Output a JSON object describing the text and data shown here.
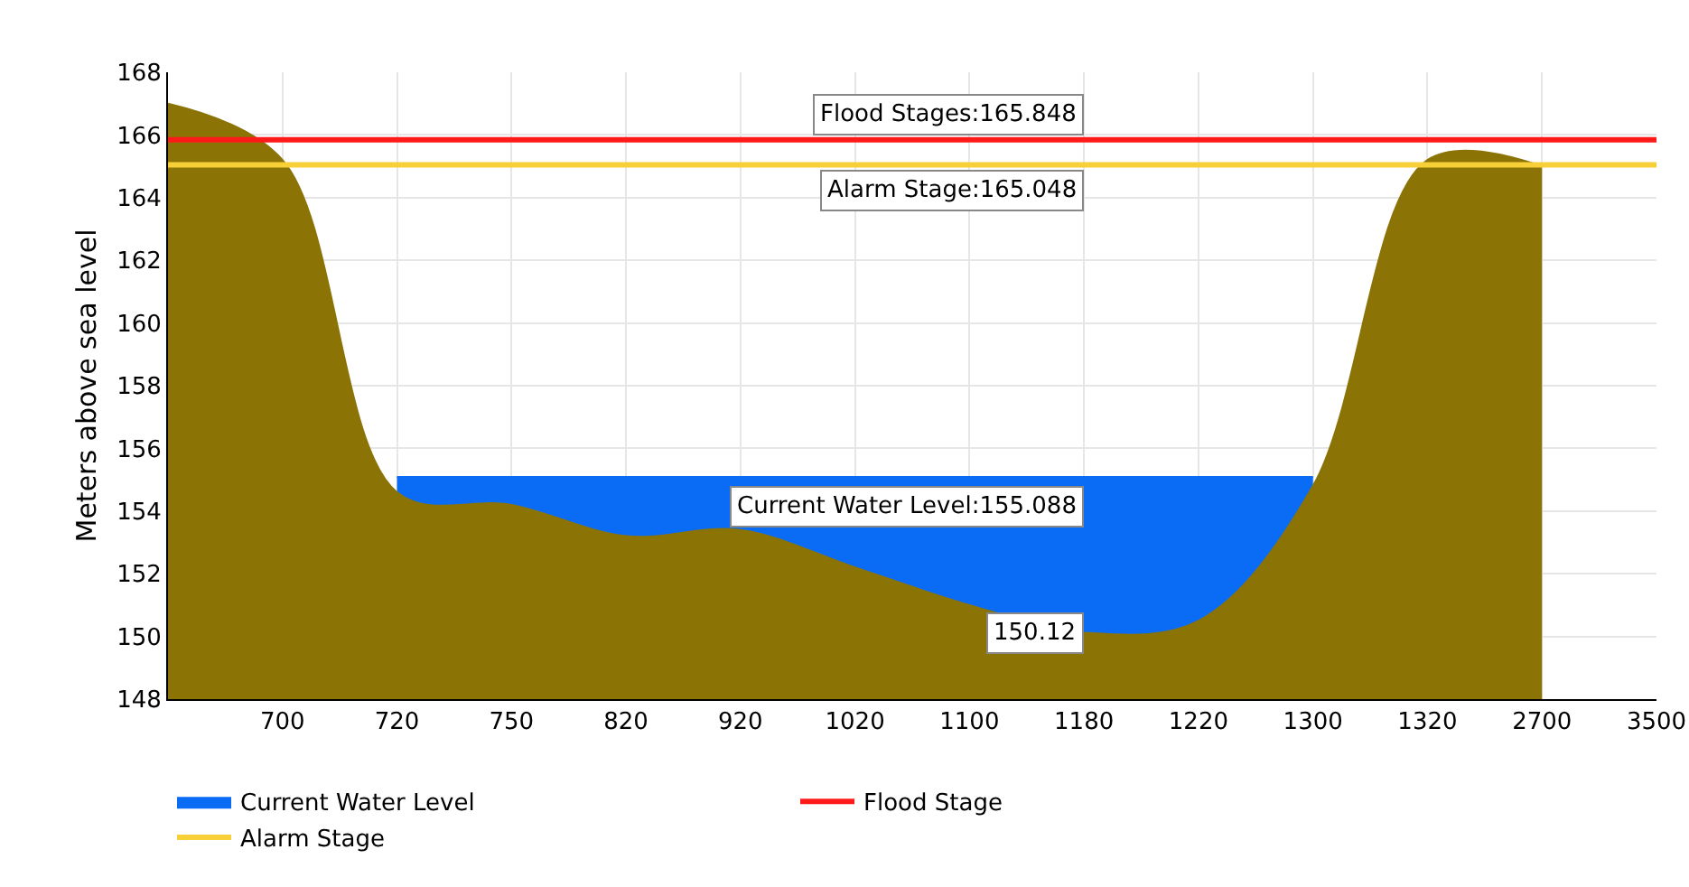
{
  "chart_data": {
    "type": "area",
    "ylabel": "Meters above sea level",
    "categories": [
      null,
      "700",
      "720",
      "750",
      "820",
      "920",
      "1020",
      "1100",
      "1180",
      "1220",
      "1300",
      "1320",
      "2700",
      "3500"
    ],
    "series": [
      {
        "name": "Current Water Level",
        "color": "#0a6cf5",
        "values": [
          null,
          null,
          155.088,
          155.088,
          155.088,
          155.088,
          155.088,
          155.088,
          155.088,
          155.088,
          155.088,
          null,
          null,
          null
        ]
      },
      {
        "color": "#8b7306",
        "values": [
          167,
          165.2,
          154.6,
          154.2,
          153.2,
          153.4,
          152.2,
          151.0,
          150.12,
          150.5,
          154.8,
          165.2,
          165.0,
          null
        ]
      },
      {
        "name": "Flood Stage",
        "type": "line",
        "color": "#ff1a1a",
        "values": [
          165.848,
          165.848,
          165.848,
          165.848,
          165.848,
          165.848,
          165.848,
          165.848,
          165.848,
          165.848,
          165.848,
          165.848,
          165.848,
          165.848
        ]
      },
      {
        "name": "Alarm Stage",
        "type": "line",
        "color": "#f7d038",
        "values": [
          165.048,
          165.048,
          165.048,
          165.048,
          165.048,
          165.048,
          165.048,
          165.048,
          165.048,
          165.048,
          165.048,
          165.048,
          165.048,
          165.048
        ]
      }
    ],
    "annotations": [
      {
        "text": "Flood Stages:165.848",
        "x": "1180",
        "y": 165.848
      },
      {
        "text": "Alarm Stage:165.048",
        "x": "1180",
        "y": 165.048
      },
      {
        "text": "Current Water Level:155.088",
        "x": "1180",
        "y": 155.088
      },
      {
        "text": "150.12",
        "x": "1180",
        "y": 150.12
      }
    ],
    "ylim": [
      148,
      168
    ],
    "yticks": [
      148,
      150,
      152,
      154,
      156,
      158,
      160,
      162,
      164,
      166,
      168
    ],
    "grid": true,
    "legend": "bottom"
  }
}
